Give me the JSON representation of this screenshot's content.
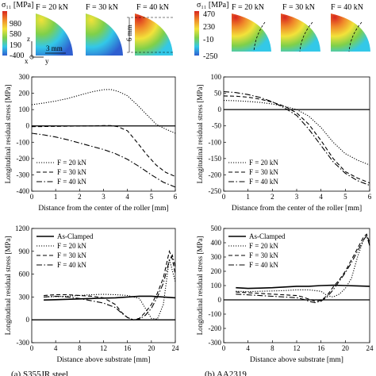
{
  "colors": {
    "axis": "#000000",
    "contour_blue": "#2f5fd0",
    "contour_cyan": "#33c8e8",
    "contour_green": "#7fd04a",
    "contour_yellow": "#f2e23a",
    "contour_orange": "#f08a2a",
    "contour_red": "#d8261e"
  },
  "top": {
    "left": {
      "colorbar_title": "σ₁₁ [MPa]",
      "colorbar_ticks": [
        "980",
        "580",
        "190",
        "-400"
      ],
      "panel_labels": [
        "F = 20 kN",
        "F = 30 kN",
        "F = 40 kN"
      ],
      "scale_label": "3 mm",
      "dim_label": "6 mm",
      "axis_labels": {
        "z": "z",
        "x": "x",
        "y": "y"
      }
    },
    "right": {
      "colorbar_title": "σ₁₁ [MPa]",
      "colorbar_ticks": [
        "470",
        "230",
        "-10",
        "-250"
      ],
      "panel_labels": [
        "F = 20 kN",
        "F = 30 kN",
        "F = 40 kN"
      ]
    }
  },
  "captions": {
    "left": "(a) S355JR steel",
    "right": "(b) AA2319"
  },
  "chart_data": [
    {
      "id": "roller-steel",
      "type": "line",
      "xlabel": "Distance from the center of the roller [mm]",
      "ylabel": "Longitudinal residual stress [MPa]",
      "xlim": [
        0,
        6
      ],
      "ylim": [
        -400,
        300
      ],
      "xticks": [
        "0",
        "1",
        "2",
        "3",
        "4",
        "5",
        "6"
      ],
      "yticks": [
        "300",
        "200",
        "100",
        "0",
        "-100",
        "-200",
        "-300",
        "-400"
      ],
      "legend_position": "bottom-left",
      "series": [
        {
          "name": "F = 20 kN",
          "dash": "dotted",
          "x": [
            0,
            0.5,
            1,
            1.5,
            2,
            2.5,
            3,
            3.3,
            3.6,
            4,
            4.4,
            4.8,
            5.2,
            5.6,
            6
          ],
          "y": [
            130,
            140,
            152,
            168,
            188,
            208,
            222,
            223,
            212,
            185,
            130,
            70,
            10,
            -20,
            -45
          ]
        },
        {
          "name": "F = 30 kN",
          "dash": "dashed",
          "x": [
            0,
            0.5,
            1,
            1.5,
            2,
            2.5,
            3,
            3.3,
            3.6,
            4,
            4.4,
            4.8,
            5.2,
            5.6,
            6
          ],
          "y": [
            -5,
            -4,
            -3,
            -2,
            -1,
            0,
            2,
            2,
            -5,
            -30,
            -100,
            -175,
            -240,
            -285,
            -310
          ]
        },
        {
          "name": "F = 40 kN",
          "dash": "dashdot",
          "x": [
            0,
            0.5,
            1,
            1.5,
            2,
            2.5,
            3,
            3.5,
            4,
            4.5,
            5,
            5.5,
            6
          ],
          "y": [
            -45,
            -55,
            -68,
            -85,
            -105,
            -125,
            -145,
            -170,
            -205,
            -250,
            -300,
            -345,
            -375
          ]
        }
      ]
    },
    {
      "id": "roller-al",
      "type": "line",
      "xlabel": "Distance from the center of the roller [mm]",
      "ylabel": "Longitudinal residual stress [MPa]",
      "xlim": [
        0,
        6
      ],
      "ylim": [
        -250,
        100
      ],
      "xticks": [
        "0",
        "1",
        "2",
        "3",
        "4",
        "5",
        "6"
      ],
      "yticks": [
        "100",
        "50",
        "0",
        "-50",
        "-100",
        "-150",
        "-200",
        "-250"
      ],
      "legend_position": "bottom-left",
      "series": [
        {
          "name": "F = 20 kN",
          "dash": "dotted",
          "x": [
            0,
            0.5,
            1,
            1.5,
            2,
            2.5,
            3,
            3.5,
            4,
            4.5,
            5,
            5.5,
            6
          ],
          "y": [
            28,
            27,
            25,
            22,
            17,
            10,
            0,
            -20,
            -55,
            -100,
            -135,
            -155,
            -170
          ]
        },
        {
          "name": "F = 30 kN",
          "dash": "dashed",
          "x": [
            0,
            0.5,
            1,
            1.5,
            2,
            2.5,
            3,
            3.5,
            4,
            4.5,
            5,
            5.5,
            6
          ],
          "y": [
            42,
            41,
            38,
            32,
            23,
            10,
            -10,
            -45,
            -95,
            -150,
            -190,
            -210,
            -225
          ]
        },
        {
          "name": "F = 40 kN",
          "dash": "dashdot",
          "x": [
            0,
            0.5,
            1,
            1.5,
            2,
            2.5,
            3,
            3.5,
            4,
            4.5,
            5,
            5.5,
            6
          ],
          "y": [
            55,
            52,
            46,
            37,
            24,
            5,
            -18,
            -60,
            -110,
            -160,
            -195,
            -218,
            -232
          ]
        }
      ]
    },
    {
      "id": "substrate-steel",
      "type": "line",
      "xlabel": "Distance above substrate [mm]",
      "ylabel": "Longitudinal residual stress [MPa]",
      "xlim": [
        0,
        24
      ],
      "ylim": [
        -300,
        1200
      ],
      "xticks": [
        "0",
        "4",
        "8",
        "12",
        "16",
        "20",
        "24"
      ],
      "yticks": [
        "1200",
        "900",
        "600",
        "300",
        "0",
        "-300"
      ],
      "legend_position": "top-left",
      "series": [
        {
          "name": "As-Clamped",
          "dash": "solid",
          "x": [
            2,
            4,
            6,
            8,
            10,
            12,
            14,
            16,
            18,
            20,
            22,
            24
          ],
          "y": [
            260,
            265,
            270,
            275,
            280,
            285,
            290,
            300,
            310,
            310,
            300,
            290
          ]
        },
        {
          "name": "F = 20 kN",
          "dash": "dotted",
          "x": [
            2,
            4,
            6,
            8,
            10,
            12,
            14,
            16,
            18,
            19,
            20,
            21,
            22,
            22.5,
            23,
            23.5,
            24
          ],
          "y": [
            300,
            305,
            310,
            320,
            330,
            335,
            330,
            320,
            280,
            150,
            20,
            10,
            200,
            500,
            800,
            650,
            500
          ]
        },
        {
          "name": "F = 30 kN",
          "dash": "dashed",
          "x": [
            2,
            4,
            6,
            8,
            10,
            12,
            14,
            15,
            16,
            17,
            18,
            19,
            20,
            21,
            22,
            23,
            23.5,
            24
          ],
          "y": [
            320,
            330,
            330,
            320,
            310,
            290,
            200,
            100,
            30,
            0,
            20,
            100,
            200,
            350,
            550,
            900,
            800,
            600
          ]
        },
        {
          "name": "F = 40 kN",
          "dash": "dashdot",
          "x": [
            2,
            4,
            6,
            8,
            10,
            12,
            14,
            15,
            16,
            17,
            18,
            19,
            20,
            21,
            22,
            23,
            23.5,
            24
          ],
          "y": [
            300,
            310,
            300,
            280,
            250,
            220,
            160,
            90,
            30,
            0,
            10,
            60,
            150,
            300,
            480,
            780,
            850,
            700
          ]
        }
      ]
    },
    {
      "id": "substrate-al",
      "type": "line",
      "xlabel": "Distance above substrate [mm]",
      "ylabel": "Longitudinal residual stress [MPa]",
      "xlim": [
        0,
        24
      ],
      "ylim": [
        -300,
        500
      ],
      "xticks": [
        "0",
        "4",
        "8",
        "12",
        "16",
        "20",
        "24"
      ],
      "yticks": [
        "500",
        "400",
        "300",
        "200",
        "100",
        "0",
        "-100",
        "-200",
        "-300"
      ],
      "legend_position": "top-left",
      "series": [
        {
          "name": "As-Clamped",
          "dash": "solid",
          "x": [
            2,
            4,
            6,
            8,
            10,
            12,
            14,
            16,
            18,
            20,
            22,
            24
          ],
          "y": [
            85,
            80,
            82,
            85,
            90,
            95,
            95,
            100,
            102,
            100,
            98,
            95
          ]
        },
        {
          "name": "F = 20 kN",
          "dash": "dotted",
          "x": [
            2,
            4,
            6,
            8,
            10,
            12,
            14,
            16,
            17,
            18,
            19,
            20,
            21,
            22,
            23,
            23.5,
            24
          ],
          "y": [
            60,
            58,
            60,
            62,
            65,
            70,
            70,
            60,
            30,
            20,
            40,
            80,
            150,
            300,
            420,
            450,
            380
          ]
        },
        {
          "name": "F = 30 kN",
          "dash": "dashed",
          "x": [
            2,
            4,
            6,
            8,
            10,
            12,
            13,
            14,
            15,
            16,
            17,
            18,
            19,
            20,
            21,
            22,
            23,
            23.5,
            24
          ],
          "y": [
            55,
            50,
            45,
            40,
            35,
            30,
            20,
            5,
            -10,
            -5,
            30,
            90,
            140,
            200,
            280,
            360,
            440,
            460,
            400
          ]
        },
        {
          "name": "F = 40 kN",
          "dash": "dashdot",
          "x": [
            2,
            4,
            6,
            8,
            10,
            12,
            13,
            14,
            15,
            16,
            17,
            18,
            19,
            20,
            21,
            22,
            23,
            23.5,
            24
          ],
          "y": [
            40,
            35,
            30,
            25,
            20,
            15,
            5,
            -10,
            -20,
            -10,
            20,
            70,
            130,
            190,
            260,
            340,
            420,
            450,
            380
          ]
        }
      ]
    }
  ]
}
